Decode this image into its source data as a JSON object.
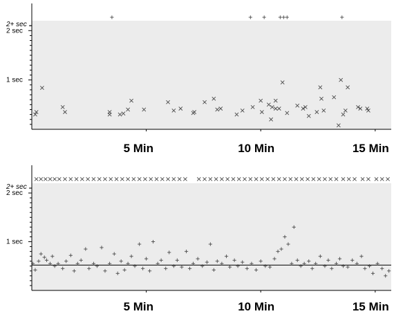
{
  "colors": {
    "plot_background": "#ececec",
    "marks": "#4a4a4a",
    "axes": "#000000"
  },
  "chart_data": [
    {
      "type": "scatter",
      "x_unit_label": "Min",
      "xlim": [
        0,
        15.7
      ],
      "ylim": [
        0,
        2.2
      ],
      "y_overflow_label": "2+ sec",
      "y_ticks": [
        {
          "value": 2,
          "label": "2 sec"
        },
        {
          "value": 1,
          "label": "1 sec"
        }
      ],
      "x_ticks": [
        {
          "value": 5,
          "label": "5 Min"
        },
        {
          "value": 10,
          "label": "10 Min"
        },
        {
          "value": 15,
          "label": "15 Min"
        }
      ],
      "minor_y_step": 0.1,
      "grid": false,
      "series": [
        {
          "marker": "x",
          "points": [
            [
              0.15,
              0.3
            ],
            [
              0.2,
              0.35
            ],
            [
              0.45,
              0.84
            ],
            [
              1.35,
              0.45
            ],
            [
              1.45,
              0.35
            ],
            [
              3.4,
              0.3
            ],
            [
              3.4,
              0.35
            ],
            [
              3.85,
              0.3
            ],
            [
              4.0,
              0.32
            ],
            [
              4.2,
              0.4
            ],
            [
              4.35,
              0.58
            ],
            [
              4.9,
              0.4
            ],
            [
              5.95,
              0.55
            ],
            [
              6.2,
              0.38
            ],
            [
              6.5,
              0.42
            ],
            [
              7.05,
              0.33
            ],
            [
              7.1,
              0.35
            ],
            [
              7.55,
              0.55
            ],
            [
              7.95,
              0.62
            ],
            [
              8.1,
              0.4
            ],
            [
              8.25,
              0.42
            ],
            [
              8.95,
              0.3
            ],
            [
              9.2,
              0.38
            ],
            [
              9.65,
              0.45
            ],
            [
              10.0,
              0.58
            ],
            [
              10.05,
              0.35
            ],
            [
              10.35,
              0.5
            ],
            [
              10.45,
              0.2
            ],
            [
              10.5,
              0.45
            ],
            [
              10.65,
              0.42
            ],
            [
              10.65,
              0.58
            ],
            [
              10.8,
              0.42
            ],
            [
              10.95,
              0.95
            ],
            [
              11.15,
              0.33
            ],
            [
              11.6,
              0.48
            ],
            [
              11.85,
              0.42
            ],
            [
              11.95,
              0.45
            ],
            [
              12.1,
              0.27
            ],
            [
              12.45,
              0.35
            ],
            [
              12.6,
              0.85
            ],
            [
              12.65,
              0.62
            ],
            [
              12.75,
              0.38
            ],
            [
              13.2,
              0.65
            ],
            [
              13.4,
              0.08
            ],
            [
              13.5,
              1.0
            ],
            [
              13.6,
              0.3
            ],
            [
              13.7,
              0.38
            ],
            [
              13.8,
              0.85
            ],
            [
              14.25,
              0.45
            ],
            [
              14.35,
              0.42
            ],
            [
              14.65,
              0.42
            ],
            [
              14.7,
              0.38
            ]
          ]
        },
        {
          "marker": "+",
          "overflow_x": [
            3.5,
            9.55,
            10.15,
            10.85,
            11.0,
            11.15,
            13.55
          ]
        }
      ]
    },
    {
      "type": "scatter",
      "x_unit_label": "Min",
      "xlim": [
        0,
        15.7
      ],
      "ylim": [
        0,
        2.2
      ],
      "y_overflow_label": "2+ sec",
      "y_ticks": [
        {
          "value": 2,
          "label": "2 sec"
        },
        {
          "value": 1,
          "label": "1 sec"
        }
      ],
      "x_ticks": [
        {
          "value": 5,
          "label": "5 Min"
        },
        {
          "value": 10,
          "label": "10 Min"
        },
        {
          "value": 15,
          "label": "15 Min"
        }
      ],
      "minor_y_step": 0.1,
      "grid": false,
      "fit_line": [
        [
          0,
          0.52
        ],
        [
          15.7,
          0.52
        ]
      ],
      "series": [
        {
          "marker": "+",
          "points": [
            [
              0.05,
              0.55
            ],
            [
              0.15,
              0.42
            ],
            [
              0.3,
              0.6
            ],
            [
              0.4,
              0.75
            ],
            [
              0.55,
              0.68
            ],
            [
              0.65,
              0.62
            ],
            [
              0.8,
              0.55
            ],
            [
              0.9,
              0.7
            ],
            [
              1.0,
              0.5
            ],
            [
              1.15,
              0.55
            ],
            [
              1.35,
              0.45
            ],
            [
              1.5,
              0.6
            ],
            [
              1.7,
              0.72
            ],
            [
              1.85,
              0.4
            ],
            [
              2.0,
              0.55
            ],
            [
              2.15,
              0.62
            ],
            [
              2.35,
              0.85
            ],
            [
              2.5,
              0.45
            ],
            [
              2.7,
              0.55
            ],
            [
              2.85,
              0.5
            ],
            [
              3.05,
              0.88
            ],
            [
              3.2,
              0.4
            ],
            [
              3.4,
              0.55
            ],
            [
              3.6,
              0.75
            ],
            [
              3.75,
              0.35
            ],
            [
              3.9,
              0.6
            ],
            [
              4.05,
              0.42
            ],
            [
              4.2,
              0.55
            ],
            [
              4.35,
              0.7
            ],
            [
              4.5,
              0.5
            ],
            [
              4.7,
              0.95
            ],
            [
              4.85,
              0.45
            ],
            [
              5.0,
              0.65
            ],
            [
              5.15,
              0.4
            ],
            [
              5.3,
              1.0
            ],
            [
              5.5,
              0.55
            ],
            [
              5.65,
              0.62
            ],
            [
              5.85,
              0.45
            ],
            [
              6.0,
              0.78
            ],
            [
              6.2,
              0.5
            ],
            [
              6.35,
              0.62
            ],
            [
              6.55,
              0.48
            ],
            [
              6.75,
              0.8
            ],
            [
              6.9,
              0.45
            ],
            [
              7.05,
              0.55
            ],
            [
              7.25,
              0.65
            ],
            [
              7.45,
              0.5
            ],
            [
              7.65,
              0.58
            ],
            [
              7.8,
              0.95
            ],
            [
              7.95,
              0.42
            ],
            [
              8.1,
              0.6
            ],
            [
              8.3,
              0.55
            ],
            [
              8.5,
              0.7
            ],
            [
              8.65,
              0.48
            ],
            [
              8.85,
              0.62
            ],
            [
              9.0,
              0.5
            ],
            [
              9.2,
              0.58
            ],
            [
              9.4,
              0.45
            ],
            [
              9.6,
              0.55
            ],
            [
              9.8,
              0.42
            ],
            [
              10.0,
              0.6
            ],
            [
              10.2,
              0.5
            ],
            [
              10.4,
              0.48
            ],
            [
              10.6,
              0.65
            ],
            [
              10.75,
              0.8
            ],
            [
              10.9,
              0.85
            ],
            [
              11.05,
              1.1
            ],
            [
              11.2,
              0.95
            ],
            [
              11.35,
              0.55
            ],
            [
              11.45,
              1.3
            ],
            [
              11.6,
              0.62
            ],
            [
              11.75,
              0.5
            ],
            [
              11.9,
              0.55
            ],
            [
              12.1,
              0.6
            ],
            [
              12.25,
              0.45
            ],
            [
              12.4,
              0.55
            ],
            [
              12.6,
              0.7
            ],
            [
              12.8,
              0.5
            ],
            [
              12.95,
              0.62
            ],
            [
              13.1,
              0.45
            ],
            [
              13.3,
              0.55
            ],
            [
              13.45,
              0.65
            ],
            [
              13.6,
              0.5
            ],
            [
              13.8,
              0.48
            ],
            [
              14.0,
              0.62
            ],
            [
              14.2,
              0.55
            ],
            [
              14.4,
              0.7
            ],
            [
              14.55,
              0.45
            ],
            [
              14.75,
              0.5
            ],
            [
              14.9,
              0.35
            ],
            [
              15.1,
              0.55
            ],
            [
              15.3,
              0.45
            ],
            [
              15.45,
              0.3
            ],
            [
              15.6,
              0.4
            ]
          ]
        },
        {
          "marker": "x",
          "overflow_x": [
            0.2,
            0.4,
            0.6,
            0.8,
            1.0,
            1.2,
            1.45,
            1.7,
            1.95,
            2.2,
            2.45,
            2.7,
            2.95,
            3.2,
            3.45,
            3.7,
            3.95,
            4.2,
            4.45,
            4.7,
            4.95,
            5.2,
            5.45,
            5.7,
            5.95,
            6.2,
            6.45,
            6.7,
            7.3,
            7.55,
            7.8,
            8.05,
            8.3,
            8.55,
            8.8,
            9.05,
            9.3,
            9.55,
            9.8,
            10.05,
            10.3,
            10.55,
            10.8,
            11.05,
            11.3,
            11.55,
            11.8,
            12.05,
            12.3,
            12.55,
            12.8,
            13.05,
            13.3,
            13.6,
            13.85,
            14.1,
            14.45,
            14.7,
            15.05,
            15.3,
            15.55
          ]
        }
      ]
    }
  ]
}
